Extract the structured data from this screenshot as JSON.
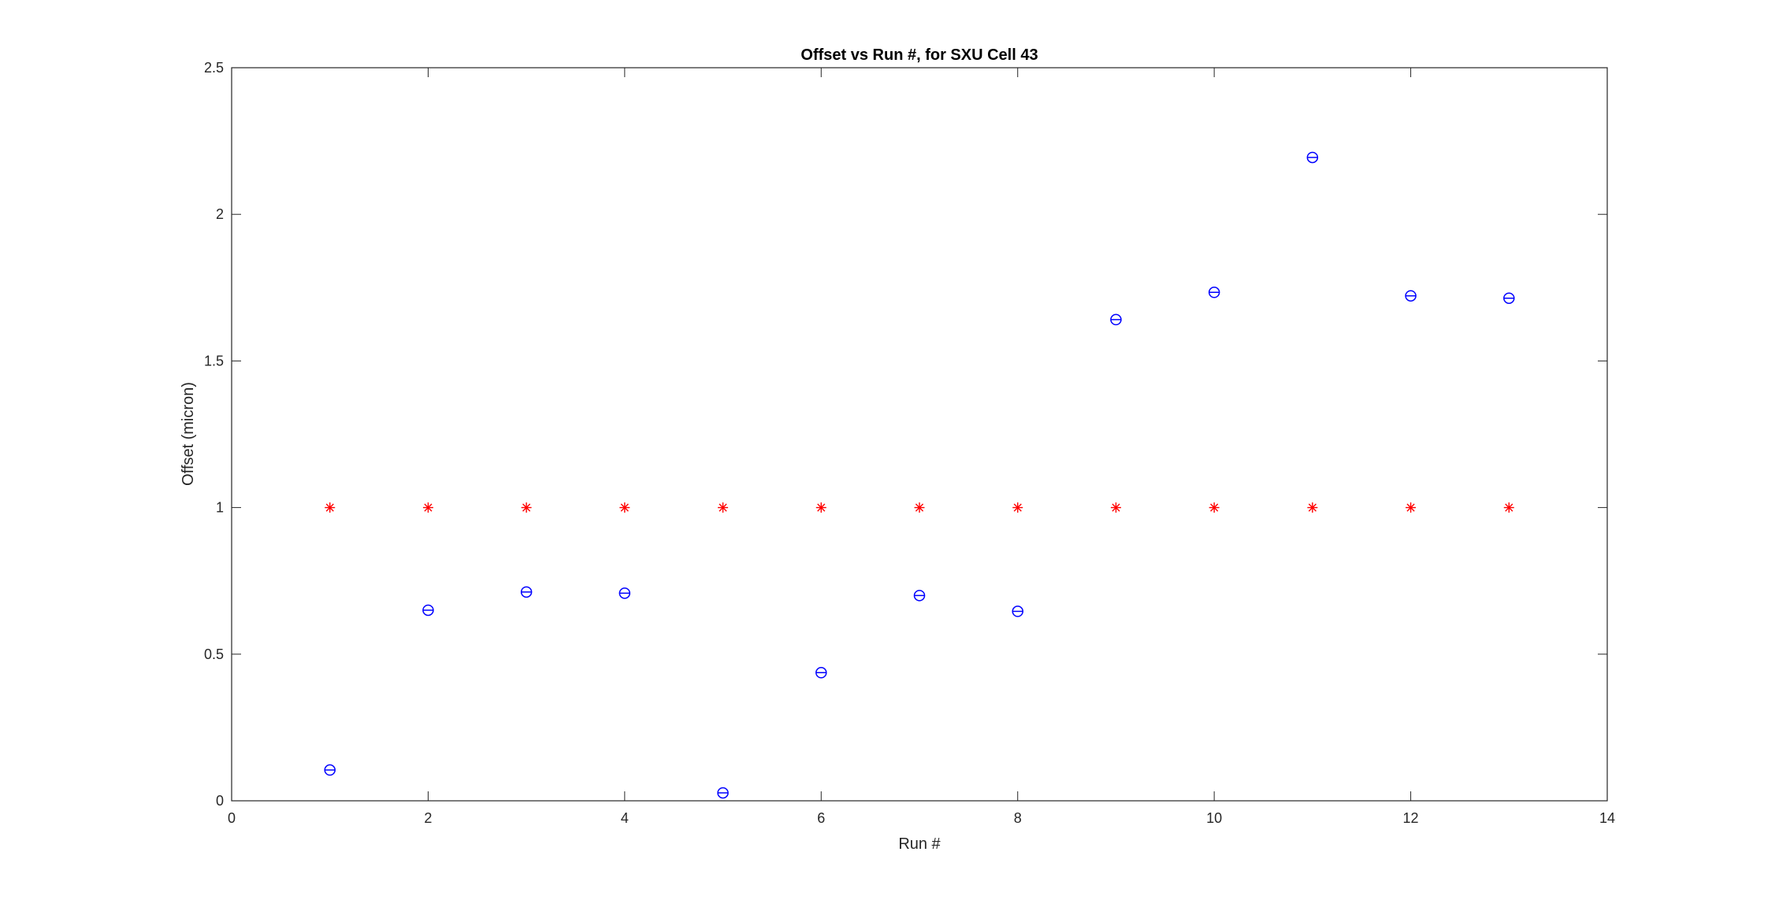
{
  "chart_data": {
    "type": "scatter",
    "title": "Offset vs Run #, for SXU Cell 43",
    "xlabel": "Run #",
    "ylabel": "Offset (micron)",
    "xlim": [
      0,
      14
    ],
    "ylim": [
      0,
      2.5
    ],
    "xticks": [
      "0",
      "2",
      "4",
      "6",
      "8",
      "10",
      "12",
      "14"
    ],
    "yticks": [
      "0",
      "0.5",
      "1",
      "1.5",
      "2",
      "2.5"
    ],
    "grid": false,
    "series": [
      {
        "marker": "circle",
        "color": "#0000ff",
        "x": [
          1,
          2,
          3,
          4,
          5,
          6,
          7,
          8,
          9,
          10,
          11,
          12,
          13
        ],
        "y": [
          0.105,
          0.65,
          0.712,
          0.708,
          0.027,
          0.437,
          0.7,
          0.646,
          1.641,
          1.734,
          2.194,
          1.722,
          1.714
        ]
      },
      {
        "marker": "asterisk",
        "color": "#ff0000",
        "x": [
          1,
          2,
          3,
          4,
          5,
          6,
          7,
          8,
          9,
          10,
          11,
          12,
          13
        ],
        "y": [
          1,
          1,
          1,
          1,
          1,
          1,
          1,
          1,
          1,
          1,
          1,
          1,
          1
        ]
      }
    ]
  }
}
